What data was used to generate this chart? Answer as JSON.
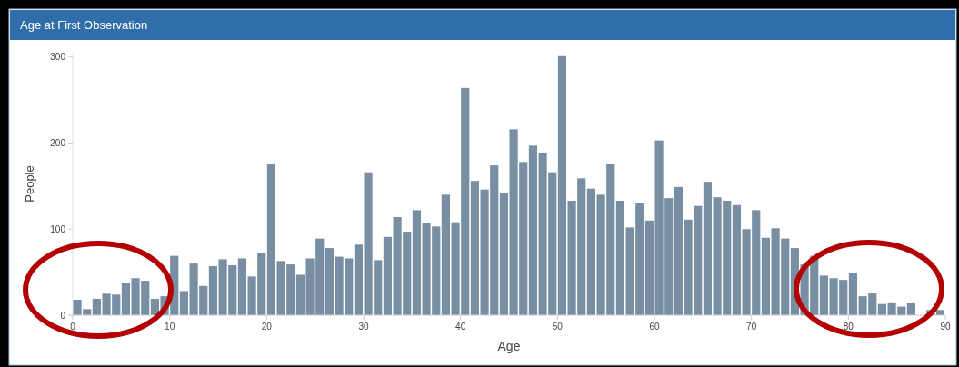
{
  "chart_data": {
    "type": "histogram",
    "title": "Age at First Observation",
    "xlabel": "Age",
    "ylabel": "People",
    "bins": [
      0,
      1,
      2,
      3,
      4,
      5,
      6,
      7,
      8,
      9,
      10,
      11,
      12,
      13,
      14,
      15,
      16,
      17,
      18,
      19,
      20,
      21,
      22,
      23,
      24,
      25,
      26,
      27,
      28,
      29,
      30,
      31,
      32,
      33,
      34,
      35,
      36,
      37,
      38,
      39,
      40,
      41,
      42,
      43,
      44,
      45,
      46,
      47,
      48,
      49,
      50,
      51,
      52,
      53,
      54,
      55,
      56,
      57,
      58,
      59,
      60,
      61,
      62,
      63,
      64,
      65,
      66,
      67,
      68,
      69,
      70,
      71,
      72,
      73,
      74,
      75,
      76,
      77,
      78,
      79,
      80,
      81,
      82,
      83,
      84,
      85,
      86,
      87,
      88,
      89,
      90
    ],
    "values": [
      18,
      7,
      19,
      25,
      24,
      38,
      43,
      40,
      19,
      22,
      69,
      28,
      60,
      34,
      57,
      65,
      58,
      66,
      45,
      72,
      176,
      63,
      59,
      47,
      66,
      89,
      78,
      68,
      66,
      82,
      166,
      64,
      91,
      114,
      97,
      122,
      107,
      103,
      140,
      108,
      264,
      156,
      146,
      174,
      142,
      216,
      178,
      197,
      189,
      166,
      301,
      133,
      159,
      147,
      140,
      176,
      133,
      102,
      130,
      110,
      203,
      136,
      149,
      111,
      127,
      155,
      137,
      133,
      128,
      100,
      122,
      90,
      101,
      89,
      78,
      59,
      69,
      46,
      43,
      41,
      49,
      22,
      26,
      13,
      15,
      10,
      14,
      0,
      6,
      6
    ],
    "color": "#778ea3",
    "xlim": [
      0,
      90
    ],
    "xticks": [
      0,
      10,
      20,
      30,
      40,
      50,
      60,
      70,
      80,
      90
    ],
    "ylim": [
      0,
      305
    ],
    "yticks": [
      0,
      100,
      200,
      300
    ],
    "grid": false
  }
}
